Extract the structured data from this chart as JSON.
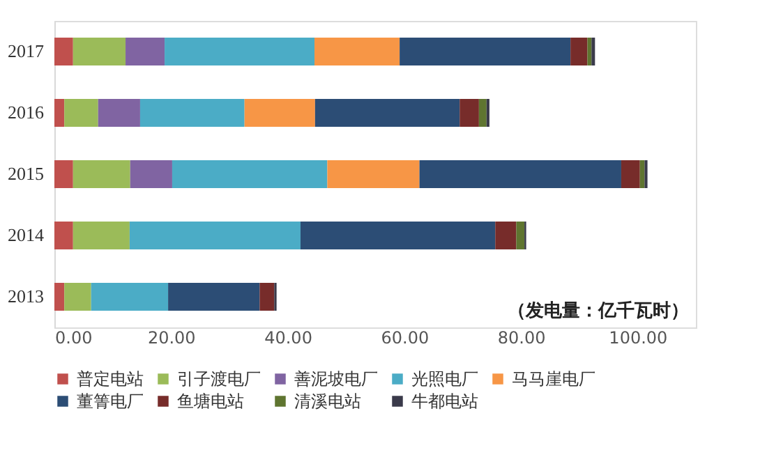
{
  "chart_data": {
    "type": "bar",
    "orientation": "horizontal",
    "stacked": true,
    "categories": [
      "2017",
      "2016",
      "2015",
      "2014",
      "2013"
    ],
    "series": [
      {
        "name": "普定电站",
        "color": "#c0504d",
        "values": [
          3.2,
          1.7,
          3.2,
          3.2,
          1.7
        ]
      },
      {
        "name": "引子渡电厂",
        "color": "#9bbb59",
        "values": [
          9.0,
          5.8,
          9.8,
          9.7,
          4.6
        ]
      },
      {
        "name": "善泥坡电厂",
        "color": "#8064a2",
        "values": [
          6.7,
          7.2,
          7.2,
          0,
          0
        ]
      },
      {
        "name": "光照电厂",
        "color": "#4bacc6",
        "values": [
          25.7,
          17.9,
          26.6,
          29.3,
          13.2
        ]
      },
      {
        "name": "马马崖电厂",
        "color": "#f79646",
        "values": [
          14.6,
          12.1,
          15.8,
          0,
          0
        ]
      },
      {
        "name": "董箐电厂",
        "color": "#2c4d75",
        "values": [
          29.3,
          24.8,
          34.6,
          33.4,
          15.7
        ]
      },
      {
        "name": "鱼塘电站",
        "color": "#772c2a",
        "values": [
          2.9,
          3.3,
          3.2,
          3.6,
          2.5
        ]
      },
      {
        "name": "清溪电站",
        "color": "#5f7530",
        "values": [
          0.7,
          1.3,
          0.8,
          1.4,
          0
        ]
      },
      {
        "name": "牛都电站",
        "color": "#3a3a4a",
        "values": [
          0.6,
          0.5,
          0.5,
          0.3,
          0.4
        ]
      }
    ],
    "xlim": [
      0,
      110
    ],
    "xticks": [
      {
        "value": 0,
        "label": "0.00"
      },
      {
        "value": 20,
        "label": "20.00"
      },
      {
        "value": 40,
        "label": "40.00"
      },
      {
        "value": 60,
        "label": "60.00"
      },
      {
        "value": 80,
        "label": "80.00"
      },
      {
        "value": 100,
        "label": "100.00"
      }
    ],
    "grid": false,
    "legend": "bottom",
    "annotations": [
      "（发电量：亿千瓦时）"
    ]
  }
}
